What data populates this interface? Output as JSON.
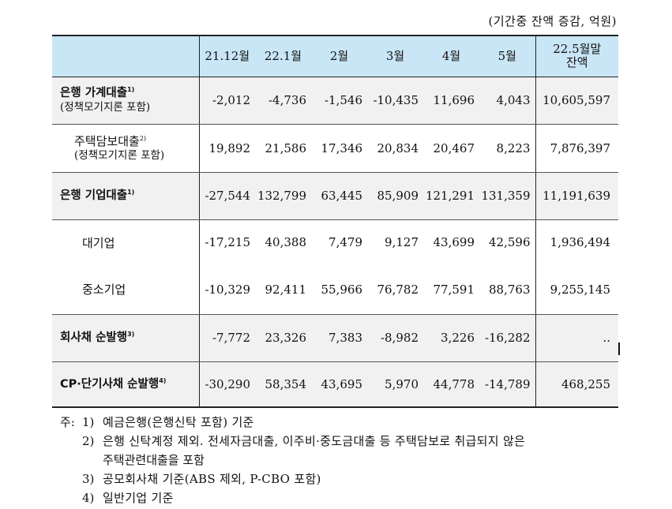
{
  "unit_note": "(기간중 잔액 증감, 억원)",
  "header": {
    "first": "",
    "cols": [
      "21.12월",
      "22.1월",
      "2월",
      "3월",
      "4월",
      "5월"
    ],
    "last_line1": "22.5월말",
    "last_line2": "잔액"
  },
  "rows": [
    {
      "label": "은행 가계대출",
      "sup": "1)",
      "note": "(정책모기지론 포함)",
      "values": [
        "-2,012",
        "-4,736",
        "-1,546",
        "-10,435",
        "11,696",
        "4,043"
      ],
      "balance": "10,605,597"
    },
    {
      "label": "주택담보대출",
      "sup": "2)",
      "note": "(정책모기지론 포함)",
      "values": [
        "19,892",
        "21,586",
        "17,346",
        "20,834",
        "20,467",
        "8,223"
      ],
      "balance": "7,876,397"
    },
    {
      "label": "은행 기업대출",
      "sup": "1)",
      "values": [
        "-27,544",
        "132,799",
        "63,445",
        "85,909",
        "121,291",
        "131,359"
      ],
      "balance": "11,191,639"
    },
    {
      "label": "대기업",
      "values": [
        "-17,215",
        "40,388",
        "7,479",
        "9,127",
        "43,699",
        "42,596"
      ],
      "balance": "1,936,494"
    },
    {
      "label": "중소기업",
      "values": [
        "-10,329",
        "92,411",
        "55,966",
        "76,782",
        "77,591",
        "88,763"
      ],
      "balance": "9,255,145"
    },
    {
      "label": "회사채 순발행",
      "sup": "3)",
      "values": [
        "-7,772",
        "23,326",
        "7,383",
        "-8,982",
        "3,226",
        "-16,282"
      ],
      "balance": ".."
    },
    {
      "label": "CP·단기사채 순발행",
      "sup": "4)",
      "values": [
        "-30,290",
        "58,354",
        "43,695",
        "5,970",
        "44,778",
        "-14,789"
      ],
      "balance": "468,255"
    }
  ],
  "notes": {
    "prefix": "주:",
    "items": [
      {
        "num": "1)",
        "text": "예금은행(은행신탁 포함) 기준"
      },
      {
        "num": "2)",
        "text": "은행 신탁계정 제외. 전세자금대출, 이주비·중도금대출 등 주택담보로 취급되지 않은",
        "cont": "주택관련대출을 포함"
      },
      {
        "num": "3)",
        "text": "공모회사채 기준(ABS 제외, P-CBO 포함)"
      },
      {
        "num": "4)",
        "text": "일반기업 기준"
      }
    ]
  }
}
